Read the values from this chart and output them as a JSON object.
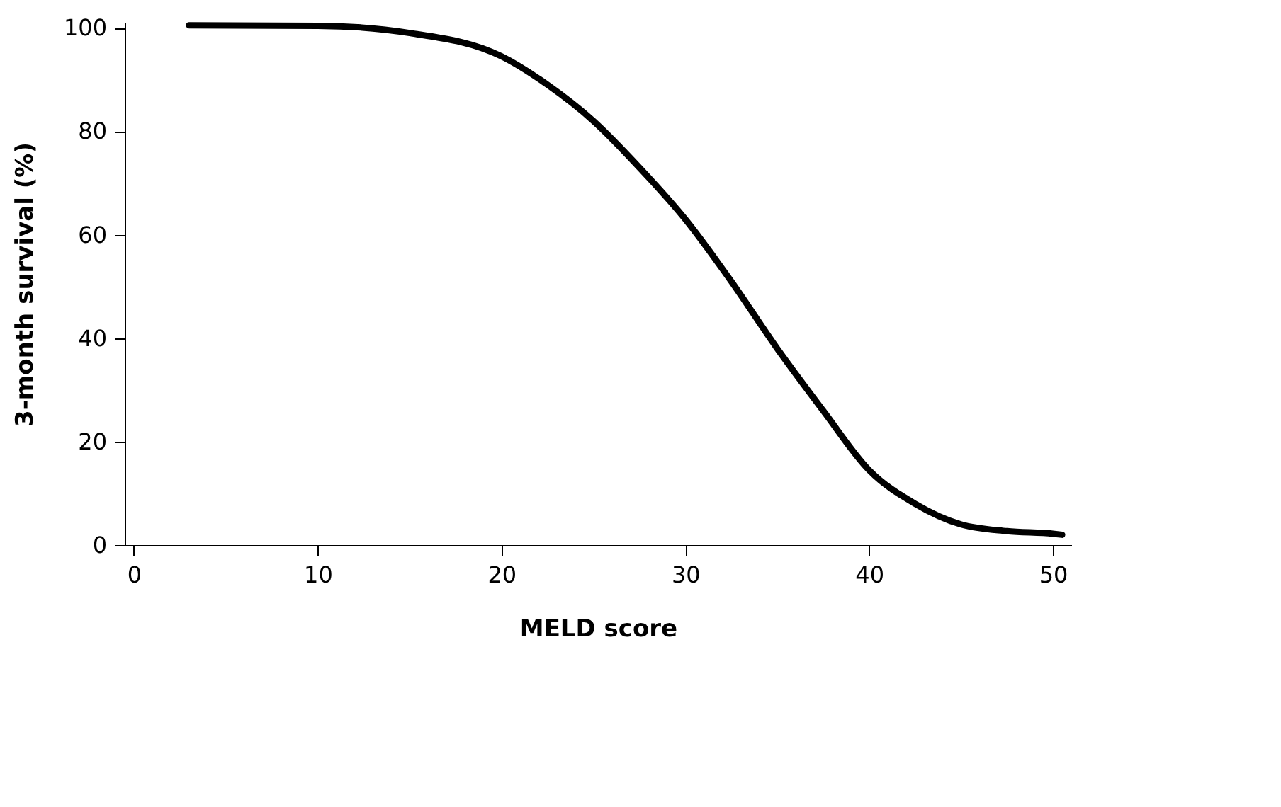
{
  "chart_data": {
    "type": "line",
    "xlabel": "MELD score",
    "ylabel": "3-month survival (%)",
    "x": [
      3,
      10,
      15,
      20,
      22.5,
      25,
      27.5,
      30,
      32.5,
      35,
      37.5,
      40,
      42.5,
      45,
      47.5,
      50,
      50.5
    ],
    "series": [
      {
        "color": "#000000",
        "values": [
          100.5,
          100.4,
          99,
          94.5,
          89,
          82,
          73,
          63,
          51,
          38,
          26,
          14.5,
          8,
          4,
          2.7,
          2.2,
          2
        ]
      }
    ],
    "xlim": [
      -0.5,
      51
    ],
    "xticks": [
      0,
      10,
      20,
      30,
      40,
      50
    ],
    "ylim": [
      0,
      101
    ],
    "yticks": [
      0,
      20,
      40,
      60,
      80,
      100
    ],
    "grid": false,
    "marker": "none",
    "line_style": "solid"
  }
}
